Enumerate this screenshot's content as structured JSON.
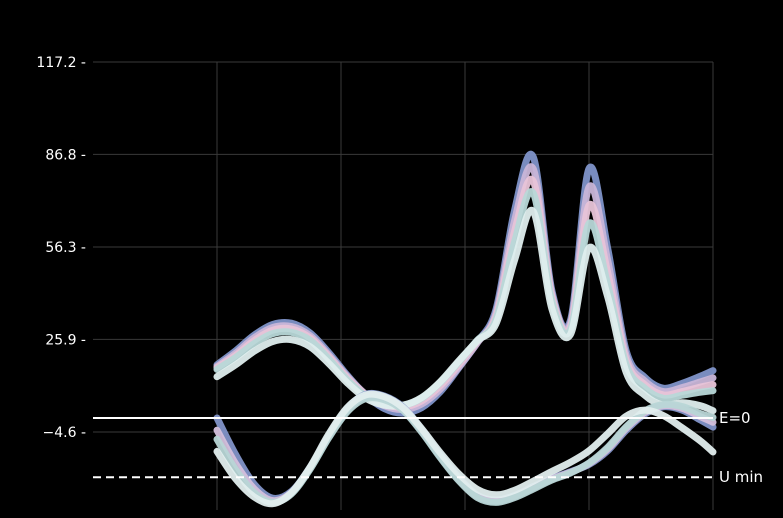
{
  "chart_data": {
    "type": "line",
    "title": "",
    "xlabel": "",
    "ylabel": "",
    "ylim": [
      -20,
      117.2
    ],
    "xlim": [
      0,
      4
    ],
    "yticks": [
      "117.2",
      "86.8",
      "56.3",
      "25.9",
      "−4.6"
    ],
    "ytick_values": [
      117.2,
      86.8,
      56.3,
      25.9,
      -4.6
    ],
    "xgrid": [
      1,
      2,
      3,
      4
    ],
    "grid": true,
    "legend": "none",
    "reference_lines": [
      {
        "label": "E=0",
        "y": 0,
        "style": "solid",
        "color": "#ffffff"
      },
      {
        "label": "U min",
        "y": -19.5,
        "style": "dashed",
        "color": "#ffffff"
      }
    ],
    "series": [
      {
        "color": "#7f93c9",
        "x": [
          0.0,
          0.15,
          0.3,
          0.45,
          0.6,
          0.75,
          0.9,
          1.05,
          1.2,
          1.35,
          1.5,
          1.65,
          1.8,
          1.95,
          2.1,
          2.25,
          2.4,
          2.55,
          2.7,
          2.85,
          3.0,
          3.15,
          3.3,
          3.45,
          3.6,
          3.75,
          3.9,
          4.0
        ],
        "y": [
          17.5,
          22.1,
          27.3,
          30.8,
          31.2,
          28.0,
          21.6,
          14.1,
          7.5,
          3.1,
          1.6,
          3.4,
          8.6,
          16.5,
          25.0,
          35.8,
          68.4,
          86.0,
          42.1,
          32.1,
          82.1,
          56.0,
          22.1,
          13.4,
          9.8,
          11.4,
          13.8,
          15.6
        ]
      },
      {
        "color": "#c9b6d8",
        "x": [
          0.0,
          0.15,
          0.3,
          0.45,
          0.6,
          0.75,
          0.9,
          1.05,
          1.2,
          1.35,
          1.5,
          1.65,
          1.8,
          1.95,
          2.1,
          2.25,
          2.4,
          2.55,
          2.7,
          2.85,
          3.0,
          3.15,
          3.3,
          3.45,
          3.6,
          3.75,
          3.9,
          4.0
        ],
        "y": [
          17.0,
          21.3,
          26.4,
          29.8,
          30.1,
          27.1,
          20.8,
          13.7,
          7.8,
          4.0,
          2.8,
          4.6,
          9.5,
          16.8,
          24.8,
          34.5,
          65.0,
          82.0,
          41.0,
          31.0,
          76.0,
          52.0,
          20.5,
          12.2,
          8.7,
          10.0,
          11.9,
          13.2
        ]
      },
      {
        "color": "#e8c4d8",
        "x": [
          0.0,
          0.15,
          0.3,
          0.45,
          0.6,
          0.75,
          0.9,
          1.05,
          1.2,
          1.35,
          1.5,
          1.65,
          1.8,
          1.95,
          2.1,
          2.25,
          2.4,
          2.55,
          2.7,
          2.85,
          3.0,
          3.15,
          3.3,
          3.45,
          3.6,
          3.75,
          3.9,
          4.0
        ],
        "y": [
          16.6,
          20.6,
          25.5,
          28.9,
          29.3,
          26.4,
          20.2,
          13.2,
          7.6,
          4.5,
          3.6,
          5.6,
          10.6,
          17.6,
          25.3,
          33.5,
          61.5,
          78.0,
          40.0,
          30.0,
          70.0,
          48.0,
          19.0,
          11.0,
          7.6,
          8.7,
          10.2,
          11.0
        ]
      },
      {
        "color": "#b8d8d8",
        "x": [
          0.0,
          0.15,
          0.3,
          0.45,
          0.6,
          0.75,
          0.9,
          1.05,
          1.2,
          1.35,
          1.5,
          1.65,
          1.8,
          1.95,
          2.1,
          2.25,
          2.4,
          2.55,
          2.7,
          2.85,
          3.0,
          3.15,
          3.3,
          3.45,
          3.6,
          3.75,
          3.9,
          4.0
        ],
        "y": [
          16.0,
          19.9,
          24.5,
          27.8,
          28.2,
          25.6,
          19.5,
          12.6,
          7.2,
          4.6,
          4.2,
          6.5,
          11.7,
          18.5,
          25.6,
          32.4,
          58.0,
          74.0,
          38.5,
          29.0,
          64.0,
          44.0,
          17.5,
          9.8,
          6.5,
          7.5,
          8.5,
          9.0
        ]
      },
      {
        "color": "#dfeeee",
        "x": [
          0.0,
          0.15,
          0.3,
          0.45,
          0.6,
          0.75,
          0.9,
          1.05,
          1.2,
          1.35,
          1.5,
          1.65,
          1.8,
          1.95,
          2.1,
          2.25,
          2.4,
          2.55,
          2.7,
          2.85,
          3.0,
          3.15,
          3.3,
          3.45,
          3.6,
          3.75,
          3.9,
          4.0
        ],
        "y": [
          13.6,
          17.5,
          22.0,
          25.2,
          25.8,
          23.5,
          18.0,
          11.6,
          6.5,
          4.2,
          4.2,
          6.7,
          11.9,
          18.8,
          25.4,
          31.0,
          52.0,
          68.0,
          36.0,
          27.5,
          56.0,
          40.0,
          15.0,
          7.5,
          4.2,
          5.0,
          4.0,
          2.4
        ]
      },
      {
        "color": "#8294c8",
        "x": [
          0.0,
          0.15,
          0.3,
          0.45,
          0.6,
          0.75,
          0.9,
          1.05,
          1.2,
          1.35,
          1.5,
          1.65,
          1.8,
          1.95,
          2.1,
          2.25,
          2.4,
          2.55,
          2.7,
          2.85,
          3.0,
          3.15,
          3.3,
          3.45,
          3.6,
          3.75,
          3.9,
          4.0
        ],
        "y": [
          0.0,
          -12.0,
          -21.8,
          -26.4,
          -24.2,
          -16.3,
          -5.8,
          3.2,
          7.8,
          7.2,
          3.6,
          -3.6,
          -12.1,
          -19.6,
          -25.4,
          -27.0,
          -25.5,
          -22.6,
          -19.9,
          -17.7,
          -15.3,
          -10.8,
          -4.0,
          1.3,
          3.7,
          2.6,
          -0.7,
          -3.0
        ]
      },
      {
        "color": "#d4c0dc",
        "x": [
          0.0,
          0.15,
          0.3,
          0.45,
          0.6,
          0.75,
          0.9,
          1.05,
          1.2,
          1.35,
          1.5,
          1.65,
          1.8,
          1.95,
          2.1,
          2.25,
          2.4,
          2.55,
          2.7,
          2.85,
          3.0,
          3.15,
          3.3,
          3.45,
          3.6,
          3.75,
          3.9,
          4.0
        ],
        "y": [
          -4.0,
          -15.0,
          -23.3,
          -27.2,
          -24.6,
          -16.6,
          -6.2,
          2.6,
          7.0,
          6.6,
          3.0,
          -4.2,
          -12.6,
          -20.2,
          -25.8,
          -27.4,
          -25.8,
          -23.0,
          -20.1,
          -17.9,
          -15.0,
          -10.2,
          -3.4,
          1.8,
          4.0,
          3.2,
          0.4,
          -1.4
        ]
      },
      {
        "color": "#b8d6d6",
        "x": [
          0.0,
          0.15,
          0.3,
          0.45,
          0.6,
          0.75,
          0.9,
          1.05,
          1.2,
          1.35,
          1.5,
          1.65,
          1.8,
          1.95,
          2.1,
          2.25,
          2.4,
          2.55,
          2.7,
          2.85,
          3.0,
          3.15,
          3.3,
          3.45,
          3.6,
          3.75,
          3.9,
          4.0
        ],
        "y": [
          -7.0,
          -17.0,
          -24.6,
          -27.8,
          -25.0,
          -16.9,
          -6.6,
          2.0,
          6.4,
          6.0,
          2.5,
          -4.6,
          -13.0,
          -20.6,
          -26.2,
          -27.8,
          -26.2,
          -23.4,
          -20.4,
          -18.1,
          -14.8,
          -9.7,
          -2.9,
          2.3,
          4.4,
          3.8,
          1.4,
          0.2
        ]
      },
      {
        "color": "#e2eeee",
        "x": [
          0.0,
          0.15,
          0.3,
          0.45,
          0.6,
          0.75,
          0.9,
          1.05,
          1.2,
          1.35,
          1.5,
          1.65,
          1.8,
          1.95,
          2.1,
          2.25,
          2.4,
          2.55,
          2.7,
          2.85,
          3.0,
          3.15,
          3.3,
          3.45,
          3.6,
          3.75,
          3.9,
          4.0
        ],
        "y": [
          -11.0,
          -20.0,
          -26.0,
          -28.2,
          -24.6,
          -16.2,
          -5.4,
          3.4,
          7.6,
          7.0,
          3.4,
          -3.5,
          -11.4,
          -18.4,
          -23.5,
          -25.3,
          -23.8,
          -20.8,
          -17.6,
          -14.6,
          -10.8,
          -5.2,
          0.6,
          2.6,
          0.8,
          -3.2,
          -7.6,
          -11.2
        ]
      }
    ]
  }
}
